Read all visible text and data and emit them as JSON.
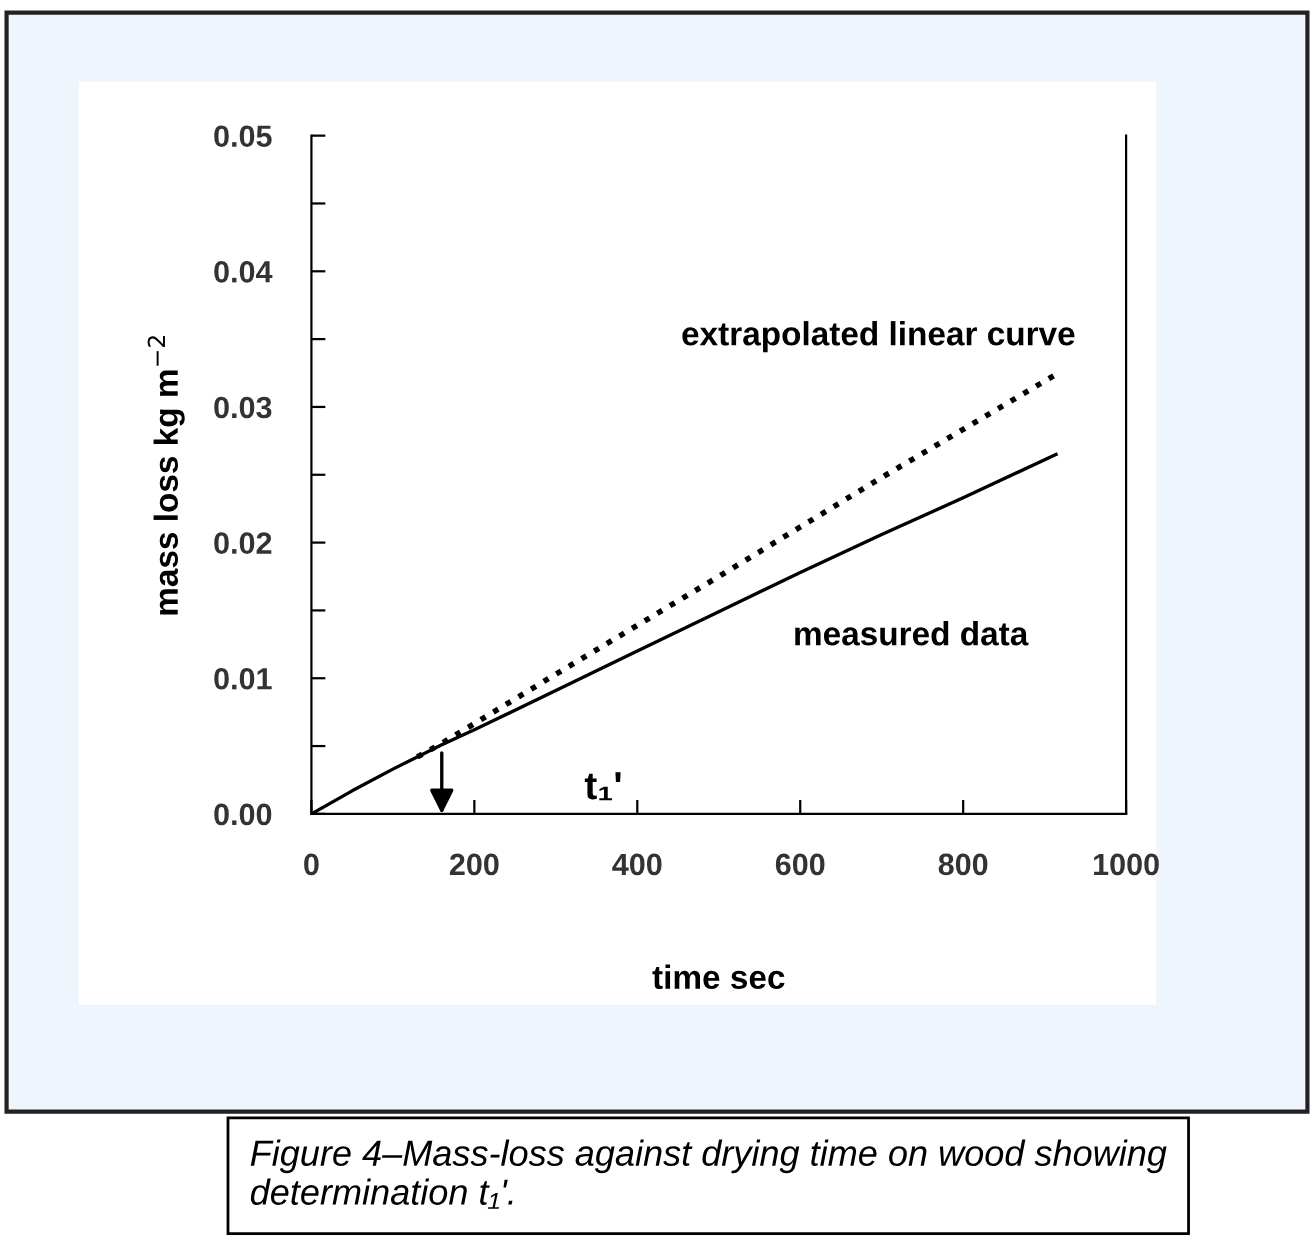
{
  "chart_data": {
    "type": "line",
    "xlabel": "time sec",
    "ylabel": "mass loss kg m$^{−2}$",
    "series": [
      {
        "name": "extrapolated linear curve",
        "color": "#000000",
        "line_style": "dotted",
        "x": [
          130,
          160,
          300,
          500,
          700,
          914
        ],
        "values": [
          0.0042,
          0.0052,
          0.0103,
          0.0175,
          0.0248,
          0.0324
        ]
      },
      {
        "name": "measured data",
        "color": "#000000",
        "line_style": "solid",
        "x": [
          0,
          50,
          100,
          160,
          200,
          300,
          400,
          500,
          600,
          700,
          800,
          914
        ],
        "values": [
          0,
          0.0017,
          0.0033,
          0.0051,
          0.0062,
          0.0091,
          0.012,
          0.0149,
          0.0178,
          0.0206,
          0.0233,
          0.0265
        ]
      }
    ],
    "xlim": [
      0,
      1000
    ],
    "xticks": [
      0,
      200,
      400,
      600,
      800,
      1000
    ],
    "ylim": [
      0,
      0.05
    ],
    "yticks": [
      {
        "value": 0,
        "label": "0.00"
      },
      {
        "value": 0.005,
        "label": null
      },
      0.01,
      {
        "value": 0.015,
        "label": null
      },
      0.02,
      {
        "value": 0.025,
        "label": null
      },
      0.03,
      {
        "value": 0.035,
        "label": null
      },
      0.04,
      {
        "value": 0.045,
        "label": null
      },
      0.05
    ],
    "grid": false,
    "legend": false,
    "marker": "none",
    "annotations": [
      "t₁'",
      "Figure 4–Mass-loss against drying time on wood showing determination t₁'."
    ]
  }
}
